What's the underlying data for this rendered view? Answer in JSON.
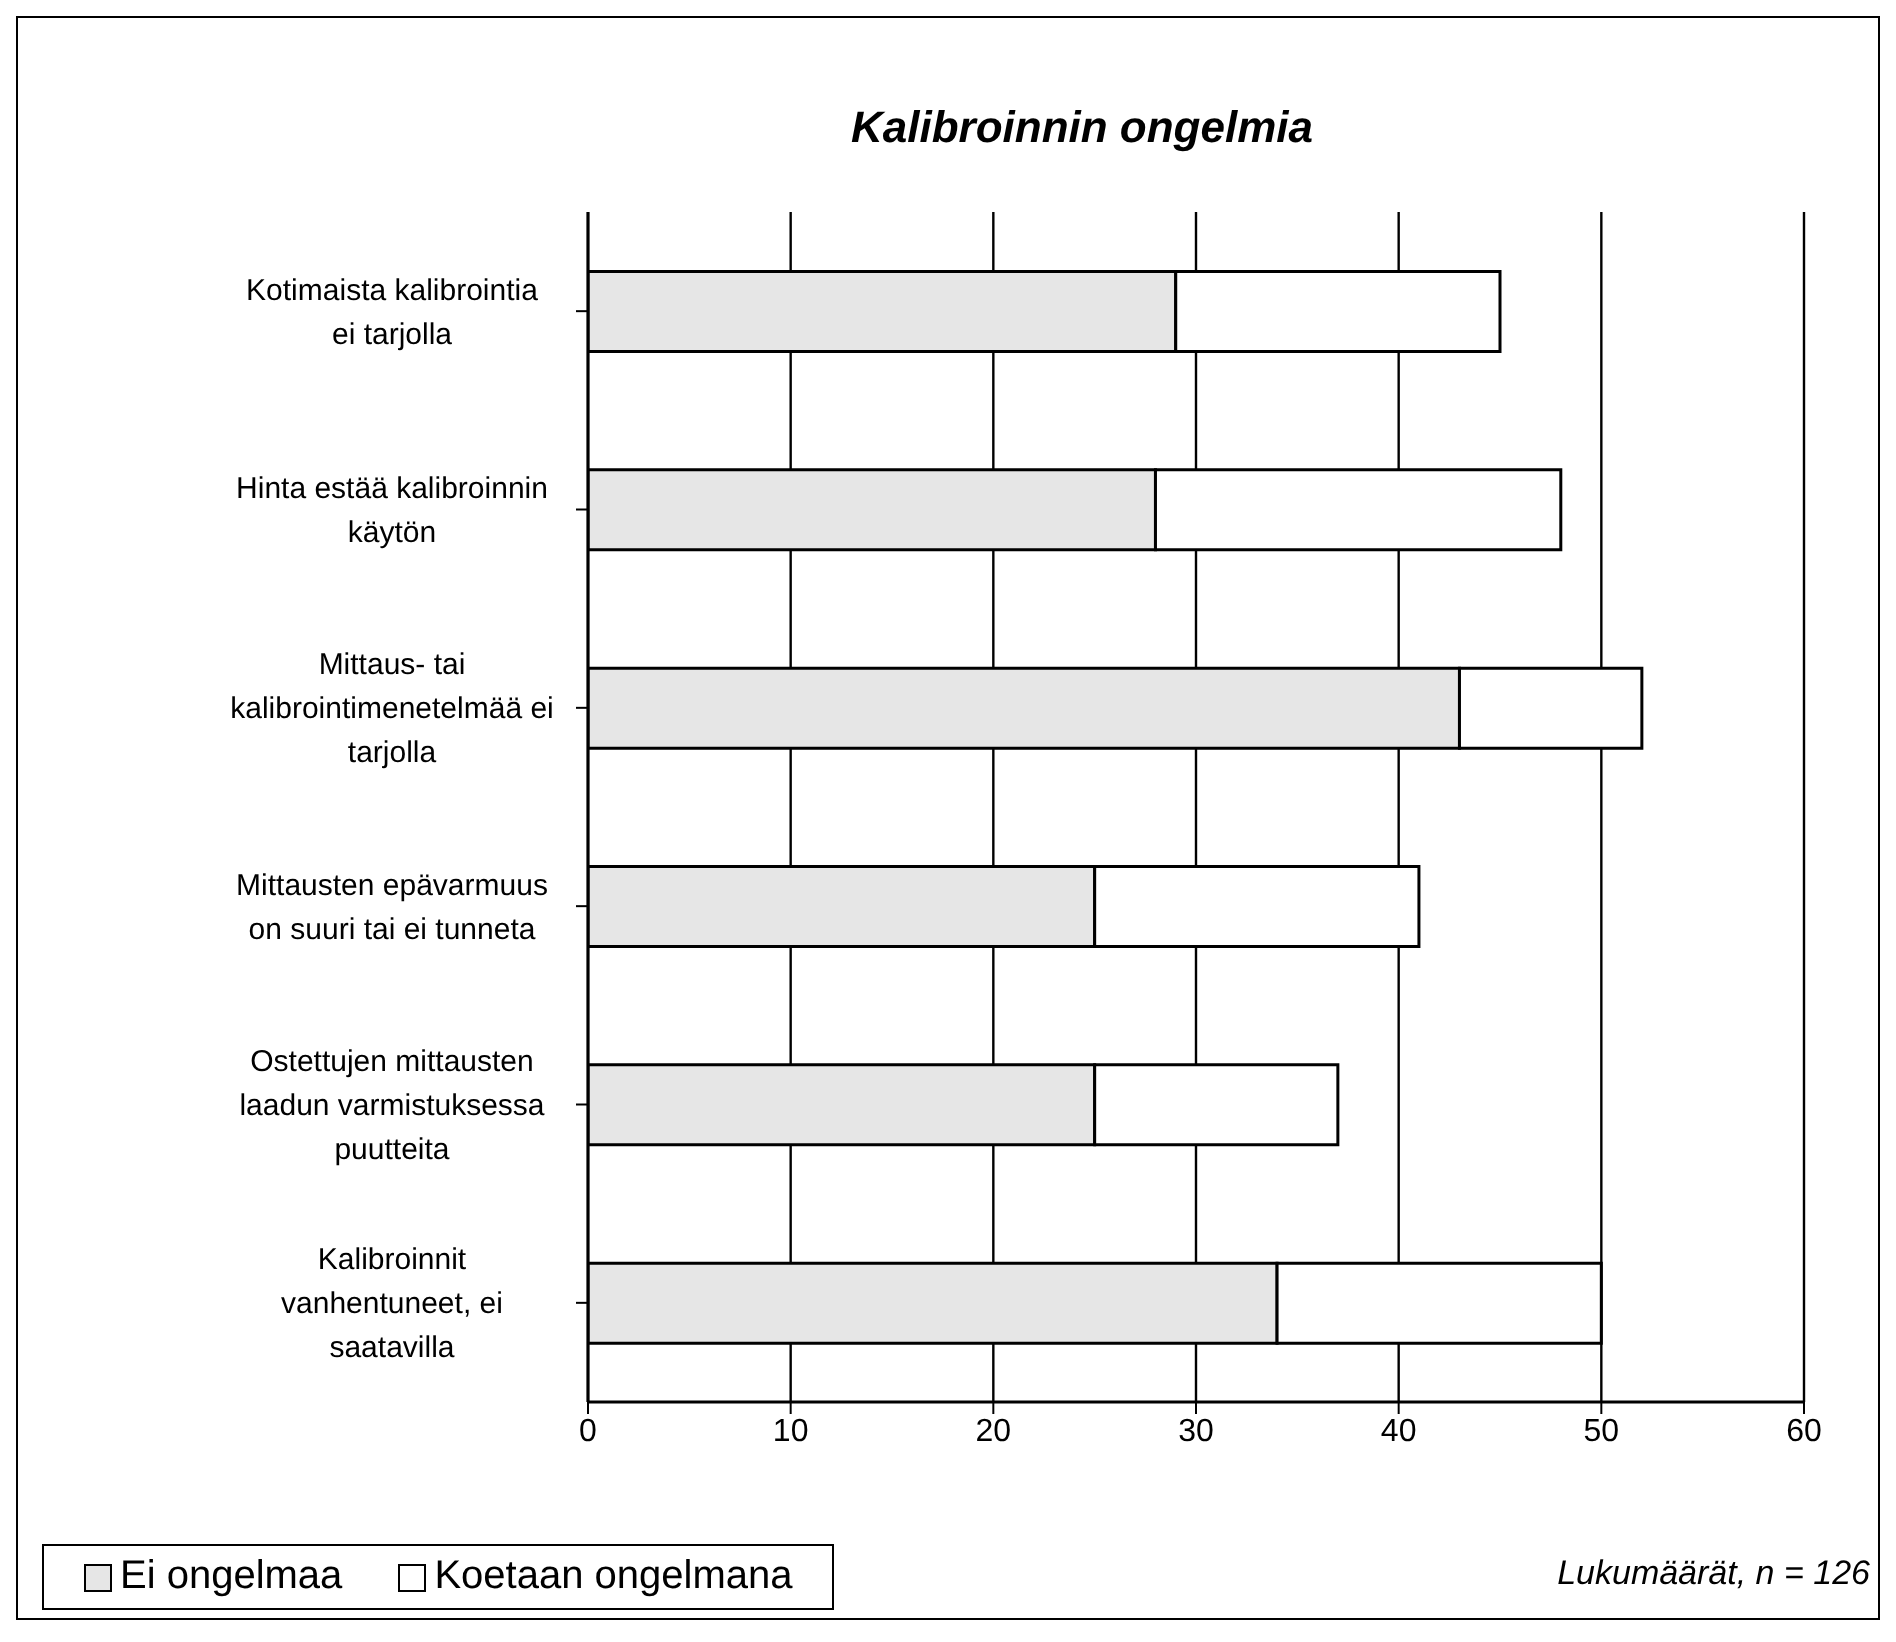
{
  "chart_data": {
    "type": "bar",
    "orientation": "horizontal",
    "stacked": true,
    "title": "Kalibroinnin ongelmia",
    "categories": [
      "Kotimaista kalibrointia ei tarjolla",
      "Hinta estää kalibroinnin käytön",
      "Mittaus- tai kalibrointimenetelmää ei tarjolla",
      "Mittausten  epävarmuus on suuri tai ei tunneta",
      "Ostettujen mittausten laadun varmistuksessa puutteita",
      "Kalibroinnit vanhentuneet, ei saatavilla"
    ],
    "series": [
      {
        "name": "Ei ongelmaa",
        "color": "#e6e6e6",
        "values": [
          29,
          28,
          43,
          25,
          25,
          34
        ]
      },
      {
        "name": "Koetaan ongelmana",
        "color": "#ffffff",
        "values": [
          16,
          20,
          9,
          16,
          12,
          16
        ]
      }
    ],
    "xlim": [
      0,
      60
    ],
    "xticks": [
      0,
      10,
      20,
      30,
      40,
      50,
      60
    ],
    "grid": "x",
    "legend": "bottom left",
    "annotations": [
      "Lukumäärät, n = 126"
    ]
  }
}
